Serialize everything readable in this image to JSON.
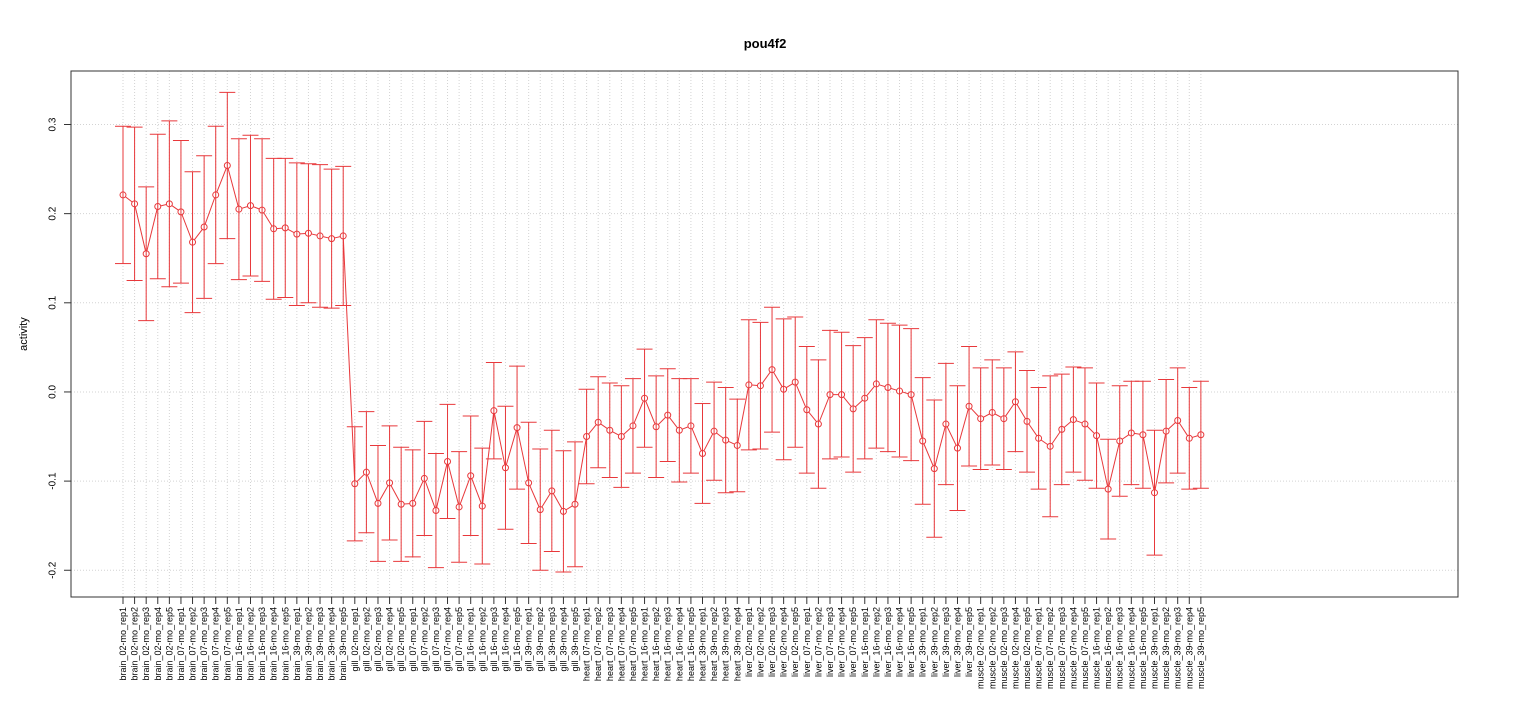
{
  "chart_data": {
    "type": "line",
    "title": "pou4f2",
    "xlabel": "",
    "ylabel": "activity",
    "ylim": [
      -0.23,
      0.36
    ],
    "yticks": [
      -0.2,
      -0.1,
      0.0,
      0.1,
      0.2,
      0.3
    ],
    "ytick_labels": [
      "-0.2",
      "-0.1",
      "0.0",
      "0.1",
      "0.2",
      "0.3"
    ],
    "grid": true,
    "legend": "none",
    "color": "#e8383b",
    "categories": [
      "brain_02-mo_rep1",
      "brain_02-mo_rep2",
      "brain_02-mo_rep3",
      "brain_02-mo_rep4",
      "brain_02-mo_rep5",
      "brain_07-mo_rep1",
      "brain_07-mo_rep2",
      "brain_07-mo_rep3",
      "brain_07-mo_rep4",
      "brain_07-mo_rep5",
      "brain_16-mo_rep1",
      "brain_16-mo_rep2",
      "brain_16-mo_rep3",
      "brain_16-mo_rep4",
      "brain_16-mo_rep5",
      "brain_39-mo_rep1",
      "brain_39-mo_rep2",
      "brain_39-mo_rep3",
      "brain_39-mo_rep4",
      "brain_39-mo_rep5",
      "gill_02-mo_rep1",
      "gill_02-mo_rep2",
      "gill_02-mo_rep3",
      "gill_02-mo_rep4",
      "gill_02-mo_rep5",
      "gill_07-mo_rep1",
      "gill_07-mo_rep2",
      "gill_07-mo_rep3",
      "gill_07-mo_rep4",
      "gill_07-mo_rep5",
      "gill_16-mo_rep1",
      "gill_16-mo_rep2",
      "gill_16-mo_rep3",
      "gill_16-mo_rep4",
      "gill_16-mo_rep5",
      "gill_39-mo_rep1",
      "gill_39-mo_rep2",
      "gill_39-mo_rep3",
      "gill_39-mo_rep4",
      "gill_39-mo_rep5",
      "heart_07-mo_rep1",
      "heart_07-mo_rep2",
      "heart_07-mo_rep3",
      "heart_07-mo_rep4",
      "heart_07-mo_rep5",
      "heart_16-mo_rep1",
      "heart_16-mo_rep2",
      "heart_16-mo_rep3",
      "heart_16-mo_rep4",
      "heart_16-mo_rep5",
      "heart_39-mo_rep1",
      "heart_39-mo_rep2",
      "heart_39-mo_rep3",
      "heart_39-mo_rep4",
      "liver_02-mo_rep1",
      "liver_02-mo_rep2",
      "liver_02-mo_rep3",
      "liver_02-mo_rep4",
      "liver_02-mo_rep5",
      "liver_07-mo_rep1",
      "liver_07-mo_rep2",
      "liver_07-mo_rep3",
      "liver_07-mo_rep4",
      "liver_07-mo_rep5",
      "liver_16-mo_rep1",
      "liver_16-mo_rep2",
      "liver_16-mo_rep3",
      "liver_16-mo_rep4",
      "liver_16-mo_rep5",
      "liver_39-mo_rep1",
      "liver_39-mo_rep2",
      "liver_39-mo_rep3",
      "liver_39-mo_rep4",
      "liver_39-mo_rep5",
      "muscle_02-mo_rep1",
      "muscle_02-mo_rep2",
      "muscle_02-mo_rep3",
      "muscle_02-mo_rep4",
      "muscle_02-mo_rep5",
      "muscle_07-mo_rep1",
      "muscle_07-mo_rep2",
      "muscle_07-mo_rep3",
      "muscle_07-mo_rep4",
      "muscle_07-mo_rep5",
      "muscle_16-mo_rep1",
      "muscle_16-mo_rep2",
      "muscle_16-mo_rep3",
      "muscle_16-mo_rep4",
      "muscle_16-mo_rep5",
      "muscle_39-mo_rep1",
      "muscle_39-mo_rep2",
      "muscle_39-mo_rep3",
      "muscle_39-mo_rep4",
      "muscle_39-mo_rep5"
    ],
    "values": [
      0.221,
      0.211,
      0.155,
      0.208,
      0.211,
      0.202,
      0.168,
      0.185,
      0.221,
      0.254,
      0.205,
      0.209,
      0.204,
      0.183,
      0.184,
      0.177,
      0.178,
      0.175,
      0.172,
      0.175,
      -0.103,
      -0.09,
      -0.125,
      -0.102,
      -0.126,
      -0.125,
      -0.097,
      -0.133,
      -0.078,
      -0.129,
      -0.094,
      -0.128,
      -0.021,
      -0.085,
      -0.04,
      -0.102,
      -0.132,
      -0.111,
      -0.134,
      -0.126,
      -0.05,
      -0.034,
      -0.043,
      -0.05,
      -0.038,
      -0.007,
      -0.039,
      -0.026,
      -0.043,
      -0.038,
      -0.069,
      -0.044,
      -0.054,
      -0.06,
      0.008,
      0.007,
      0.025,
      0.003,
      0.011,
      -0.02,
      -0.036,
      -0.003,
      -0.003,
      -0.019,
      -0.007,
      0.009,
      0.005,
      0.001,
      -0.003,
      -0.055,
      -0.086,
      -0.036,
      -0.063,
      -0.016,
      -0.03,
      -0.023,
      -0.03,
      -0.011,
      -0.033,
      -0.052,
      -0.061,
      -0.042,
      -0.031,
      -0.036,
      -0.049,
      -0.109,
      -0.055,
      -0.046,
      -0.048,
      -0.113,
      -0.044,
      -0.032,
      -0.052,
      -0.048
    ],
    "error": [
      0.077,
      0.086,
      0.075,
      0.081,
      0.093,
      0.08,
      0.079,
      0.08,
      0.077,
      0.082,
      0.079,
      0.079,
      0.08,
      0.079,
      0.078,
      0.08,
      0.078,
      0.08,
      0.078,
      0.078,
      0.064,
      0.068,
      0.065,
      0.064,
      0.064,
      0.06,
      0.064,
      0.064,
      0.064,
      0.062,
      0.067,
      0.065,
      0.054,
      0.069,
      0.069,
      0.068,
      0.068,
      0.068,
      0.068,
      0.07,
      0.053,
      0.051,
      0.053,
      0.057,
      0.053,
      0.055,
      0.057,
      0.052,
      0.058,
      0.053,
      0.056,
      0.055,
      0.059,
      0.052,
      0.073,
      0.071,
      0.07,
      0.079,
      0.073,
      0.071,
      0.072,
      0.072,
      0.07,
      0.071,
      0.068,
      0.072,
      0.072,
      0.074,
      0.074,
      0.071,
      0.077,
      0.068,
      0.07,
      0.067,
      0.057,
      0.059,
      0.057,
      0.056,
      0.057,
      0.057,
      0.079,
      0.062,
      0.059,
      0.063,
      0.059,
      0.056,
      0.062,
      0.058,
      0.06,
      0.07,
      0.058,
      0.059,
      0.057,
      0.06
    ]
  }
}
